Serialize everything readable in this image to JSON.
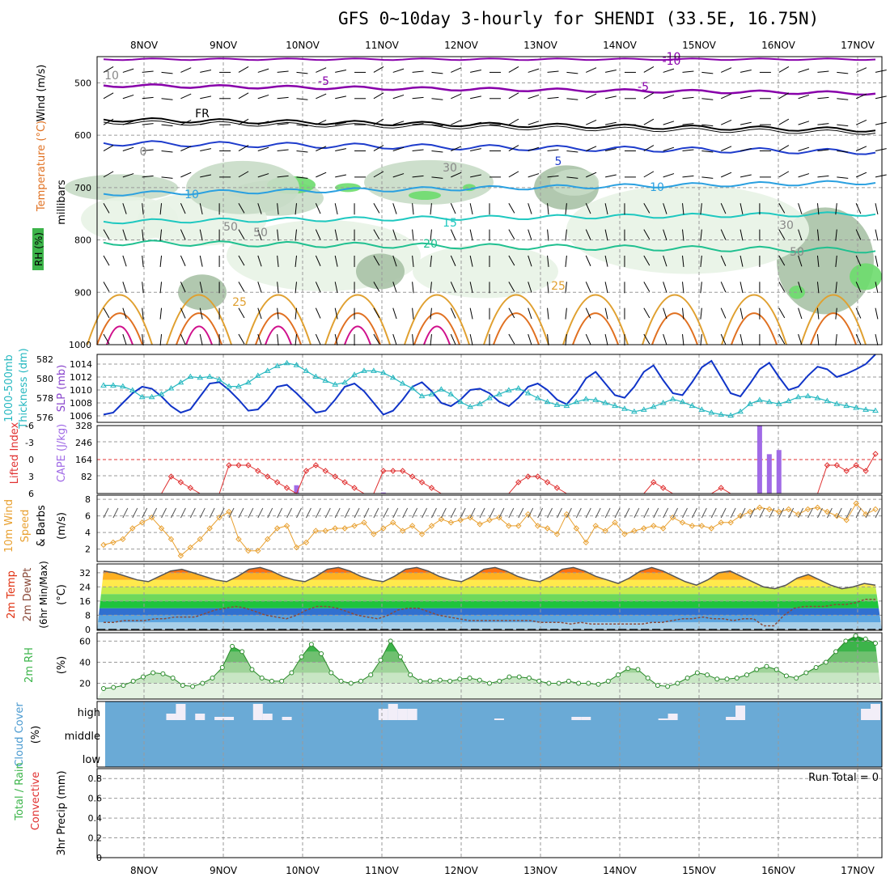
{
  "title": "GFS 0~10day 3-hourly for SHENDI (33.5E, 16.75N)",
  "dates": [
    "8NOV",
    "9NOV",
    "10NOV",
    "11NOV",
    "12NOV",
    "13NOV",
    "14NOV",
    "15NOV",
    "16NOV",
    "17NOV"
  ],
  "colors": {
    "purple": "#8800aa",
    "black": "#000000",
    "blue": "#1e3ccc",
    "lightblue": "#2aa0e0",
    "teal": "#1ec8c0",
    "green": "#20c090",
    "orange": "#e0a030",
    "darkorange": "#e07020",
    "magenta": "#d0108c",
    "cyan_slp": "#26b8c0",
    "thick_blue": "#1034c8",
    "cape_purple": "#a06ae6",
    "lifted_red": "#e03030",
    "wind_orange": "#e8a030",
    "cloud_blue": "#6aaad6",
    "rh_green": "#3cb44a"
  },
  "chart_data": [
    {
      "type": "contour",
      "panel": "upper-air",
      "ylabel": "millibars",
      "left_labels": [
        "Wind (m/s)",
        "Temperature (°C)",
        "RH (%)"
      ],
      "y_ticks": [
        "500",
        "600",
        "700",
        "800",
        "900",
        "1000"
      ],
      "ylim": [
        1000,
        450
      ],
      "contour_labels": [
        "-10",
        "-5",
        "FR",
        "-5",
        "-10",
        "5",
        "10",
        "15",
        "20",
        "25",
        "25",
        "10",
        "30",
        "50",
        "50",
        "30",
        "50",
        "10",
        "0"
      ]
    },
    {
      "type": "line",
      "panel": "thickness-slp",
      "left_labels": [
        "1000-500mb",
        "Thickness (dm)",
        "SLP (mb)"
      ],
      "y_ticks_left": [
        "576",
        "578",
        "580",
        "582"
      ],
      "y_ticks_right": [
        "1006",
        "1008",
        "1010",
        "1012",
        "1014"
      ],
      "x": [
        0,
        1,
        2,
        3,
        4,
        5,
        6,
        7,
        8,
        9,
        10,
        11,
        12,
        13,
        14,
        15,
        16,
        17,
        18,
        19,
        20,
        21,
        22,
        23,
        24,
        25,
        26,
        27,
        28,
        29,
        30,
        31,
        32,
        33,
        34,
        35,
        36,
        37,
        38,
        39,
        40,
        41,
        42,
        43,
        44,
        45,
        46,
        47,
        48,
        49,
        50,
        51,
        52,
        53,
        54,
        55,
        56,
        57,
        58,
        59,
        60,
        61,
        62,
        63,
        64,
        65,
        66,
        67,
        68,
        69,
        70,
        71,
        72,
        73,
        74,
        75,
        76,
        77,
        78,
        79,
        80
      ],
      "series": [
        {
          "name": "SLP (mb)",
          "values": [
            1006.2,
            1006.5,
            1008,
            1009.5,
            1010.5,
            1010.2,
            1009,
            1007.5,
            1006.5,
            1007,
            1009,
            1011,
            1011.2,
            1010,
            1008.5,
            1006.8,
            1007,
            1008.5,
            1010.5,
            1010.8,
            1009.5,
            1008,
            1006.5,
            1006.8,
            1008.5,
            1010.5,
            1011,
            1009.8,
            1008,
            1006.2,
            1006.8,
            1008.5,
            1010.5,
            1011.2,
            1009.8,
            1008,
            1007.5,
            1008.5,
            1010,
            1010.2,
            1009.5,
            1008.2,
            1007.5,
            1008.8,
            1010.5,
            1011,
            1010,
            1008.5,
            1007.8,
            1009.5,
            1011.8,
            1012.8,
            1011,
            1009.2,
            1008.8,
            1010.5,
            1012.8,
            1013.8,
            1011.5,
            1009.5,
            1009.2,
            1011.2,
            1013.5,
            1014.5,
            1012,
            1009.5,
            1009,
            1011,
            1013.2,
            1014.2,
            1012,
            1010,
            1010.5,
            1012.2,
            1013.6,
            1013.2,
            1012,
            1012.5,
            1013.2,
            1014,
            1015.5
          ]
        },
        {
          "name": "Thickness (dm)",
          "values": [
            579.3,
            579.3,
            579.2,
            578.8,
            578.1,
            578.1,
            578.4,
            579,
            579.6,
            580.2,
            580.1,
            580.2,
            579.9,
            579.2,
            579.2,
            579.6,
            580.3,
            580.8,
            581.3,
            581.6,
            581.4,
            580.8,
            580.2,
            579.8,
            579.4,
            579.6,
            580.4,
            580.8,
            580.8,
            580.6,
            580.1,
            579.5,
            579,
            578.2,
            578.4,
            578.9,
            578.4,
            577.6,
            577.1,
            577.4,
            578.0,
            578.4,
            578.8,
            579.0,
            578.5,
            578.0,
            577.6,
            577.3,
            577.2,
            577.6,
            577.9,
            577.8,
            577.5,
            577.2,
            576.9,
            576.6,
            576.8,
            577.1,
            577.5,
            577.9,
            577.6,
            577.2,
            576.8,
            576.5,
            576.3,
            576.2,
            576.6,
            577.4,
            577.8,
            577.6,
            577.4,
            577.7,
            578.1,
            578.2,
            578.0,
            577.7,
            577.4,
            577.2,
            577.0,
            576.8,
            576.7
          ]
        }
      ]
    },
    {
      "type": "bar",
      "panel": "lifted-index-cape",
      "left_labels": [
        "Lifted Index",
        "CAPE (J/kg)"
      ],
      "y_ticks_left": [
        "-6",
        "-3",
        "0",
        "3",
        "6"
      ],
      "y_ticks_right": [
        "82",
        "164",
        "246",
        "328"
      ],
      "series": [
        {
          "name": "Lifted Index",
          "x": [
            0,
            1,
            2,
            3,
            4,
            5,
            6,
            7,
            8,
            9,
            10,
            11,
            12,
            13,
            14,
            15,
            16,
            17,
            18,
            19,
            20,
            21,
            22,
            23,
            24,
            25,
            26,
            27,
            28,
            29,
            30,
            31,
            32,
            33,
            34,
            35,
            36,
            37,
            38,
            39,
            40,
            41,
            42,
            43,
            44,
            45,
            46,
            47,
            48,
            49,
            50,
            51,
            52,
            53,
            54,
            55,
            56,
            57,
            58,
            59,
            60,
            61,
            62,
            63,
            64,
            65,
            66,
            67,
            68,
            69,
            70,
            71,
            72,
            73,
            74,
            75,
            76,
            77,
            78,
            79,
            80
          ],
          "values": [
            6,
            6,
            6,
            6,
            6,
            6,
            6,
            3,
            4,
            5,
            6,
            6,
            6,
            1,
            1,
            1,
            2,
            3,
            4,
            5,
            6,
            2,
            1,
            2,
            3,
            4,
            5,
            6,
            6,
            2,
            2,
            2,
            3,
            4,
            5,
            6,
            6,
            6,
            6,
            6,
            6,
            6,
            6,
            4,
            3,
            3,
            4,
            5,
            6,
            6,
            6,
            6,
            6,
            6,
            6,
            6,
            6,
            4,
            5,
            6,
            6,
            6,
            6,
            6,
            5,
            6,
            6,
            6,
            6,
            6,
            6,
            6,
            6,
            6,
            6,
            1,
            1,
            2,
            1,
            2,
            -1
          ]
        },
        {
          "name": "CAPE (J/kg)",
          "x": [
            20,
            29,
            68,
            69,
            70
          ],
          "values": [
            40,
            5,
            330,
            190,
            210
          ]
        }
      ]
    },
    {
      "type": "line",
      "panel": "10m-wind",
      "left_labels": [
        "10m Wind",
        "Speed",
        "& Barbs"
      ],
      "ylabel": "(m/s)",
      "y_ticks": [
        "2",
        "4",
        "6",
        "8"
      ],
      "series": [
        {
          "name": "Speed (m/s)",
          "values": [
            2.5,
            2.8,
            3.2,
            4.5,
            5.2,
            5.8,
            4.5,
            3.2,
            1.2,
            2.2,
            3.2,
            4.5,
            5.8,
            6.5,
            3.2,
            1.8,
            1.8,
            3.2,
            4.5,
            4.8,
            2.2,
            2.8,
            4.2,
            4.2,
            4.5,
            4.5,
            4.8,
            5.2,
            3.8,
            4.5,
            5.2,
            4.2,
            4.8,
            3.8,
            4.8,
            5.6,
            5.2,
            5.5,
            5.8,
            5.0,
            5.5,
            5.8,
            4.8,
            4.8,
            6.2,
            4.8,
            4.5,
            3.8,
            6.2,
            4.5,
            2.8,
            4.8,
            4.2,
            5.2,
            3.8,
            4.2,
            4.5,
            4.8,
            4.5,
            5.8,
            5.2,
            4.8,
            4.8,
            4.5,
            5.2,
            5.2,
            6.0,
            6.5,
            7.0,
            6.8,
            6.5,
            6.8,
            6.2,
            6.8,
            7.0,
            6.5,
            6.0,
            5.5,
            7.5,
            6.2,
            6.8,
            5.8
          ]
        }
      ]
    },
    {
      "type": "area",
      "panel": "2m-temp",
      "left_labels": [
        "2m Temp",
        "2m DewPt",
        "(6hr Min/Max)"
      ],
      "ylabel": "(°C)",
      "y_ticks": [
        "0",
        "8",
        "16",
        "24",
        "32"
      ],
      "series": [
        {
          "name": "2m Temp",
          "values": [
            33,
            32,
            30,
            28,
            27,
            30,
            33,
            34,
            32,
            30,
            28,
            27,
            30,
            34,
            35,
            33,
            30,
            28,
            27,
            30,
            34,
            35,
            33,
            30,
            28,
            27,
            30,
            34,
            35,
            33,
            30,
            28,
            27,
            30,
            34,
            35,
            33,
            30,
            28,
            27,
            30,
            34,
            35,
            33,
            30,
            28,
            26,
            29,
            33,
            35,
            33,
            30,
            27,
            25,
            28,
            32,
            33,
            30,
            27,
            24,
            23,
            25,
            29,
            31,
            28,
            25,
            23,
            24,
            26,
            25
          ]
        },
        {
          "name": "2m DewPt",
          "values": [
            4,
            4,
            5,
            5,
            5,
            6,
            6,
            7,
            7,
            7,
            9,
            11,
            12,
            13,
            12,
            10,
            8,
            7,
            6,
            8,
            11,
            13,
            13,
            12,
            10,
            8,
            7,
            6,
            8,
            11,
            12,
            12,
            10,
            8,
            7,
            6,
            5,
            5,
            5,
            5,
            5,
            5,
            5,
            4,
            4,
            4,
            3,
            4,
            3,
            3,
            3,
            3,
            3,
            3,
            4,
            4,
            5,
            6,
            6,
            7,
            6,
            6,
            5,
            6,
            6,
            2,
            2,
            8,
            12,
            13,
            13,
            13,
            14,
            14,
            15,
            17,
            17
          ]
        }
      ]
    },
    {
      "type": "area",
      "panel": "2m-rh",
      "left_labels": [
        "2m RH"
      ],
      "ylabel": "(%)",
      "y_ticks": [
        "20",
        "40",
        "60"
      ],
      "series": [
        {
          "name": "2m RH (%)",
          "values": [
            15,
            16,
            18,
            22,
            26,
            30,
            29,
            25,
            18,
            17,
            20,
            25,
            35,
            55,
            50,
            33,
            25,
            22,
            22,
            30,
            45,
            57,
            48,
            30,
            22,
            20,
            22,
            28,
            42,
            60,
            45,
            28,
            22,
            22,
            23,
            22,
            24,
            25,
            23,
            20,
            22,
            26,
            26,
            25,
            22,
            20,
            20,
            22,
            20,
            20,
            19,
            22,
            28,
            34,
            33,
            25,
            18,
            17,
            20,
            25,
            30,
            28,
            24,
            24,
            25,
            28,
            33,
            36,
            33,
            27,
            25,
            30,
            35,
            40,
            50,
            60,
            65,
            62,
            58
          ]
        }
      ]
    },
    {
      "type": "bar",
      "panel": "cloud-cover",
      "left_labels": [
        "Cloud Cover"
      ],
      "ylabel": "(%)",
      "levels": [
        "high",
        "middle",
        "low"
      ],
      "series": [
        {
          "name": "high cloud",
          "x": [
            7,
            8,
            10,
            12,
            13,
            16,
            17,
            19,
            29,
            30,
            31,
            32,
            41,
            49,
            50,
            58,
            59,
            65,
            66,
            68,
            69,
            79,
            80,
            81
          ]
        }
      ]
    },
    {
      "type": "bar",
      "panel": "precip",
      "left_labels": [
        "Total / Rain",
        "Convective"
      ],
      "ylabel": "3hr Precip (mm)",
      "y_ticks": [
        "0",
        "0.2",
        "0.4",
        "0.6",
        "0.8"
      ],
      "run_total": "Run Total = 0",
      "series": [
        {
          "name": "Total / Rain",
          "values": []
        },
        {
          "name": "Convective",
          "values": []
        }
      ]
    }
  ]
}
